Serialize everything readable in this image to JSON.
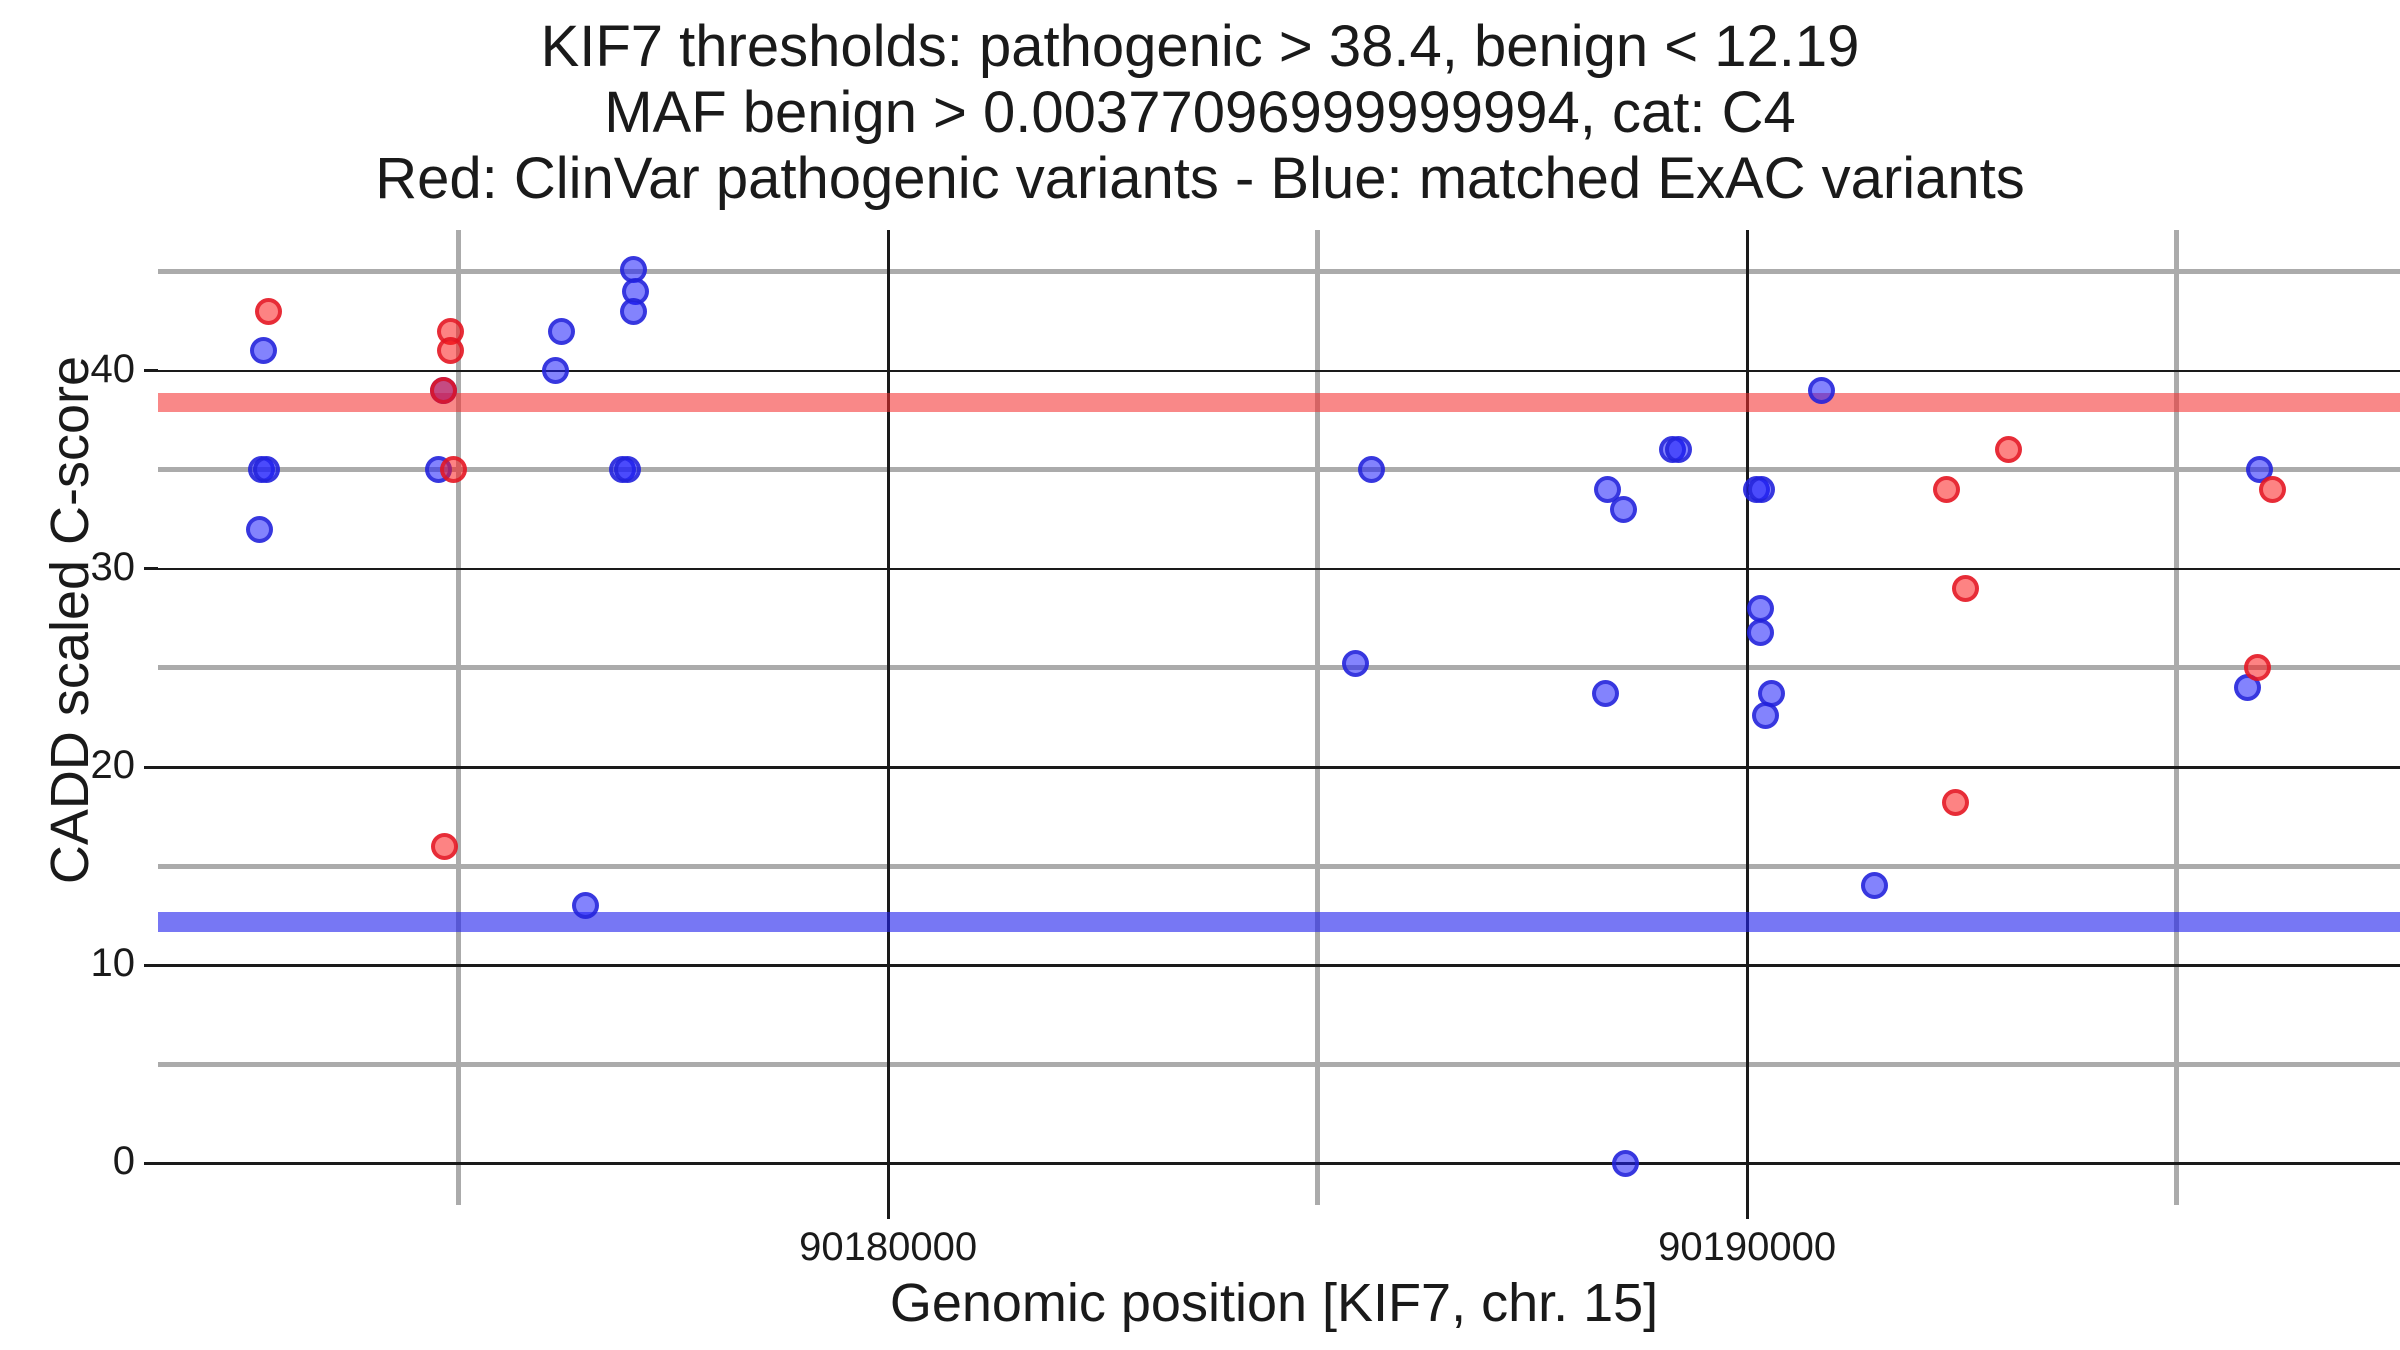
{
  "titles": {
    "line1": "KIF7 thresholds: pathogenic > 38.4, benign < 12.19",
    "line2": "MAF benign > 0.00377096999999994, cat: C4",
    "line3": "Red: ClinVar pathogenic variants - Blue: matched ExAC variants"
  },
  "chart_data": {
    "type": "scatter",
    "title": "KIF7 thresholds: pathogenic > 38.4, benign < 12.19 | MAF benign > 0.00377096999999994, cat: C4 | Red: ClinVar pathogenic variants - Blue: matched ExAC variants",
    "xlabel": "Genomic position [KIF7, chr. 15]",
    "ylabel": "CADD scaled C-score",
    "xlim": [
      90171500,
      90197600
    ],
    "ylim": [
      -2.1,
      47.1
    ],
    "grid": true,
    "legend_position": "none",
    "x_major_ticks": [
      {
        "value": 90180000,
        "label": "90180000"
      },
      {
        "value": 90190000,
        "label": "90190000"
      }
    ],
    "x_minor_gridlines": [
      90175000,
      90185000,
      90195000
    ],
    "y_major_ticks": [
      {
        "value": 0,
        "label": "0"
      },
      {
        "value": 10,
        "label": "10"
      },
      {
        "value": 20,
        "label": "20"
      },
      {
        "value": 30,
        "label": "30"
      },
      {
        "value": 40,
        "label": "40"
      }
    ],
    "y_minor_gridlines": [
      5,
      15,
      25,
      35,
      45
    ],
    "thresholds": {
      "pathogenic_cadd": 38.4,
      "benign_cadd": 12.19,
      "band_halfwidth": 0.5
    },
    "series": [
      {
        "name": "matched ExAC variants",
        "color_key": "blue",
        "points": [
          [
            90172730,
            41
          ],
          [
            90172700,
            35
          ],
          [
            90172760,
            35
          ],
          [
            90172680,
            32
          ],
          [
            90174820,
            39
          ],
          [
            90174770,
            35
          ],
          [
            90176200,
            42
          ],
          [
            90176130,
            40
          ],
          [
            90176480,
            13
          ],
          [
            90177030,
            45.1
          ],
          [
            90177060,
            44
          ],
          [
            90177040,
            43
          ],
          [
            90176910,
            35
          ],
          [
            90176970,
            35
          ],
          [
            90185630,
            35
          ],
          [
            90185440,
            25.2
          ],
          [
            90188370,
            34
          ],
          [
            90188560,
            33
          ],
          [
            90188350,
            23.7
          ],
          [
            90188580,
            0
          ],
          [
            90189130,
            36
          ],
          [
            90189200,
            36
          ],
          [
            90190110,
            34
          ],
          [
            90190170,
            34
          ],
          [
            90190150,
            28
          ],
          [
            90190160,
            26.8
          ],
          [
            90190280,
            23.7
          ],
          [
            90190210,
            22.6
          ],
          [
            90190870,
            39
          ],
          [
            90191480,
            14
          ],
          [
            90195970,
            35
          ],
          [
            90195830,
            24
          ]
        ]
      },
      {
        "name": "ClinVar pathogenic variants",
        "color_key": "red",
        "points": [
          [
            90172790,
            43
          ],
          [
            90174900,
            42
          ],
          [
            90174910,
            41
          ],
          [
            90174820,
            39
          ],
          [
            90174940,
            35
          ],
          [
            90174840,
            16
          ],
          [
            90192320,
            34
          ],
          [
            90192540,
            29
          ],
          [
            90192420,
            18.2
          ],
          [
            90193040,
            36
          ],
          [
            90196110,
            34
          ],
          [
            90195940,
            25
          ]
        ]
      }
    ]
  },
  "colors": {
    "pathogenic_band": "rgba(245,45,45,0.57)",
    "benign_band": "rgba(35,35,238,0.62)",
    "red_point_fill": "rgba(252,30,30,0.55)",
    "red_point_ring": "rgba(225,20,35,0.78)",
    "blue_point_fill": "rgba(30,30,252,0.55)",
    "blue_point_ring": "rgba(35,35,215,0.78)",
    "grid_minor": "#ababab",
    "grid_major": "#1a1a1a",
    "text": "#1a1a1a"
  }
}
